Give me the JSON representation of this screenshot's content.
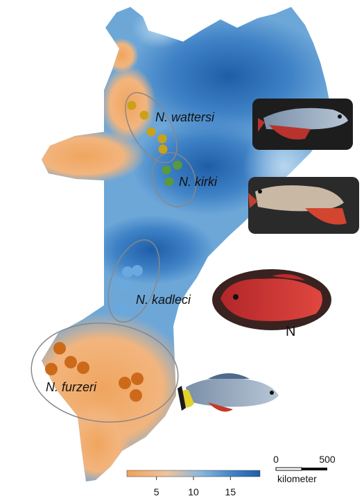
{
  "species": [
    {
      "id": "wattersi",
      "label": "N. wattersi",
      "color": "#c9a21a",
      "points": [
        [
          190,
          152
        ],
        [
          208,
          166
        ],
        [
          218,
          190
        ],
        [
          234,
          200
        ],
        [
          235,
          215
        ]
      ]
    },
    {
      "id": "kirki",
      "label": "N. kirki",
      "color": "#5a9a3a",
      "points": [
        [
          240,
          245
        ],
        [
          256,
          238
        ],
        [
          244,
          262
        ]
      ]
    },
    {
      "id": "kadleci",
      "label": "N. kadleci",
      "color": "#6aa8e0",
      "points": [
        [
          184,
          392
        ],
        [
          198,
          390
        ],
        [
          180,
          412
        ],
        [
          178,
          445
        ]
      ]
    },
    {
      "id": "furzeri",
      "label": "N. furzeri",
      "color": "#cc6a1a",
      "points": [
        [
          86,
          502
        ],
        [
          102,
          522
        ],
        [
          120,
          530
        ],
        [
          74,
          532
        ],
        [
          180,
          552
        ],
        [
          198,
          546
        ],
        [
          196,
          570
        ]
      ]
    }
  ],
  "legend": {
    "ticks": [
      "5",
      "10",
      "15"
    ],
    "colors": [
      "#f2a15a",
      "#eec39d",
      "#8cb8dc",
      "#3f82c6",
      "#1e5ea8"
    ],
    "tick_values": [
      5,
      10,
      15
    ],
    "range": [
      1,
      19
    ]
  },
  "scalebar": {
    "labels": [
      "0",
      "500"
    ],
    "unit": "kilometer"
  },
  "stray_text": "N",
  "colors": {
    "dry": "#f2a15a",
    "wet": "#2f6fb8",
    "mid": "#9ec3e2"
  }
}
